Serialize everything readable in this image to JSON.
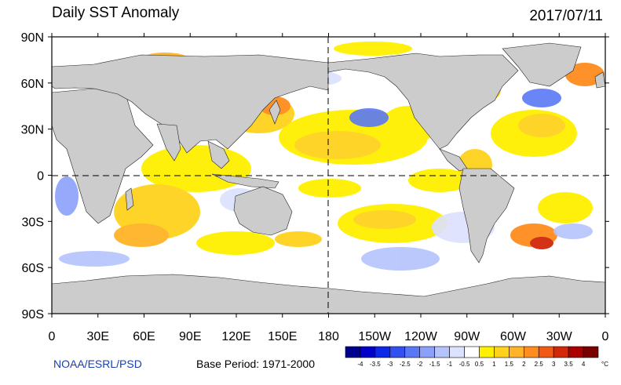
{
  "title": "Daily SST Anomaly",
  "date": "2017/07/11",
  "credit": "NOAA/ESRL/PSD",
  "base_period": "Base Period: 1971-2000",
  "lat_labels": [
    "90N",
    "60N",
    "30N",
    "0",
    "30S",
    "60S",
    "90S"
  ],
  "lon_labels": [
    "0",
    "30E",
    "60E",
    "90E",
    "120E",
    "150E",
    "180",
    "150W",
    "120W",
    "90W",
    "60W",
    "30W",
    "0"
  ],
  "colorbar": {
    "unit": "°C",
    "labels": [
      "-4",
      "-3.5",
      "-3",
      "-2.5",
      "-2",
      "-1.5",
      "-1",
      "-0.5",
      "0.5",
      "1",
      "1.5",
      "2",
      "2.5",
      "3",
      "3.5",
      "4"
    ],
    "colors": [
      "#00008c",
      "#0000c8",
      "#0a28e6",
      "#3250f0",
      "#5a78f5",
      "#8ca0fa",
      "#b4c3fc",
      "#dce1fe",
      "#ffffff",
      "#fff000",
      "#ffd21e",
      "#ffb428",
      "#ff8c1e",
      "#f05a14",
      "#d2280a",
      "#aa0000",
      "#780000"
    ]
  },
  "colors": {
    "land": "#cccccc",
    "ocean_neutral": "#ffffff",
    "credit": "#1a3fb0"
  }
}
